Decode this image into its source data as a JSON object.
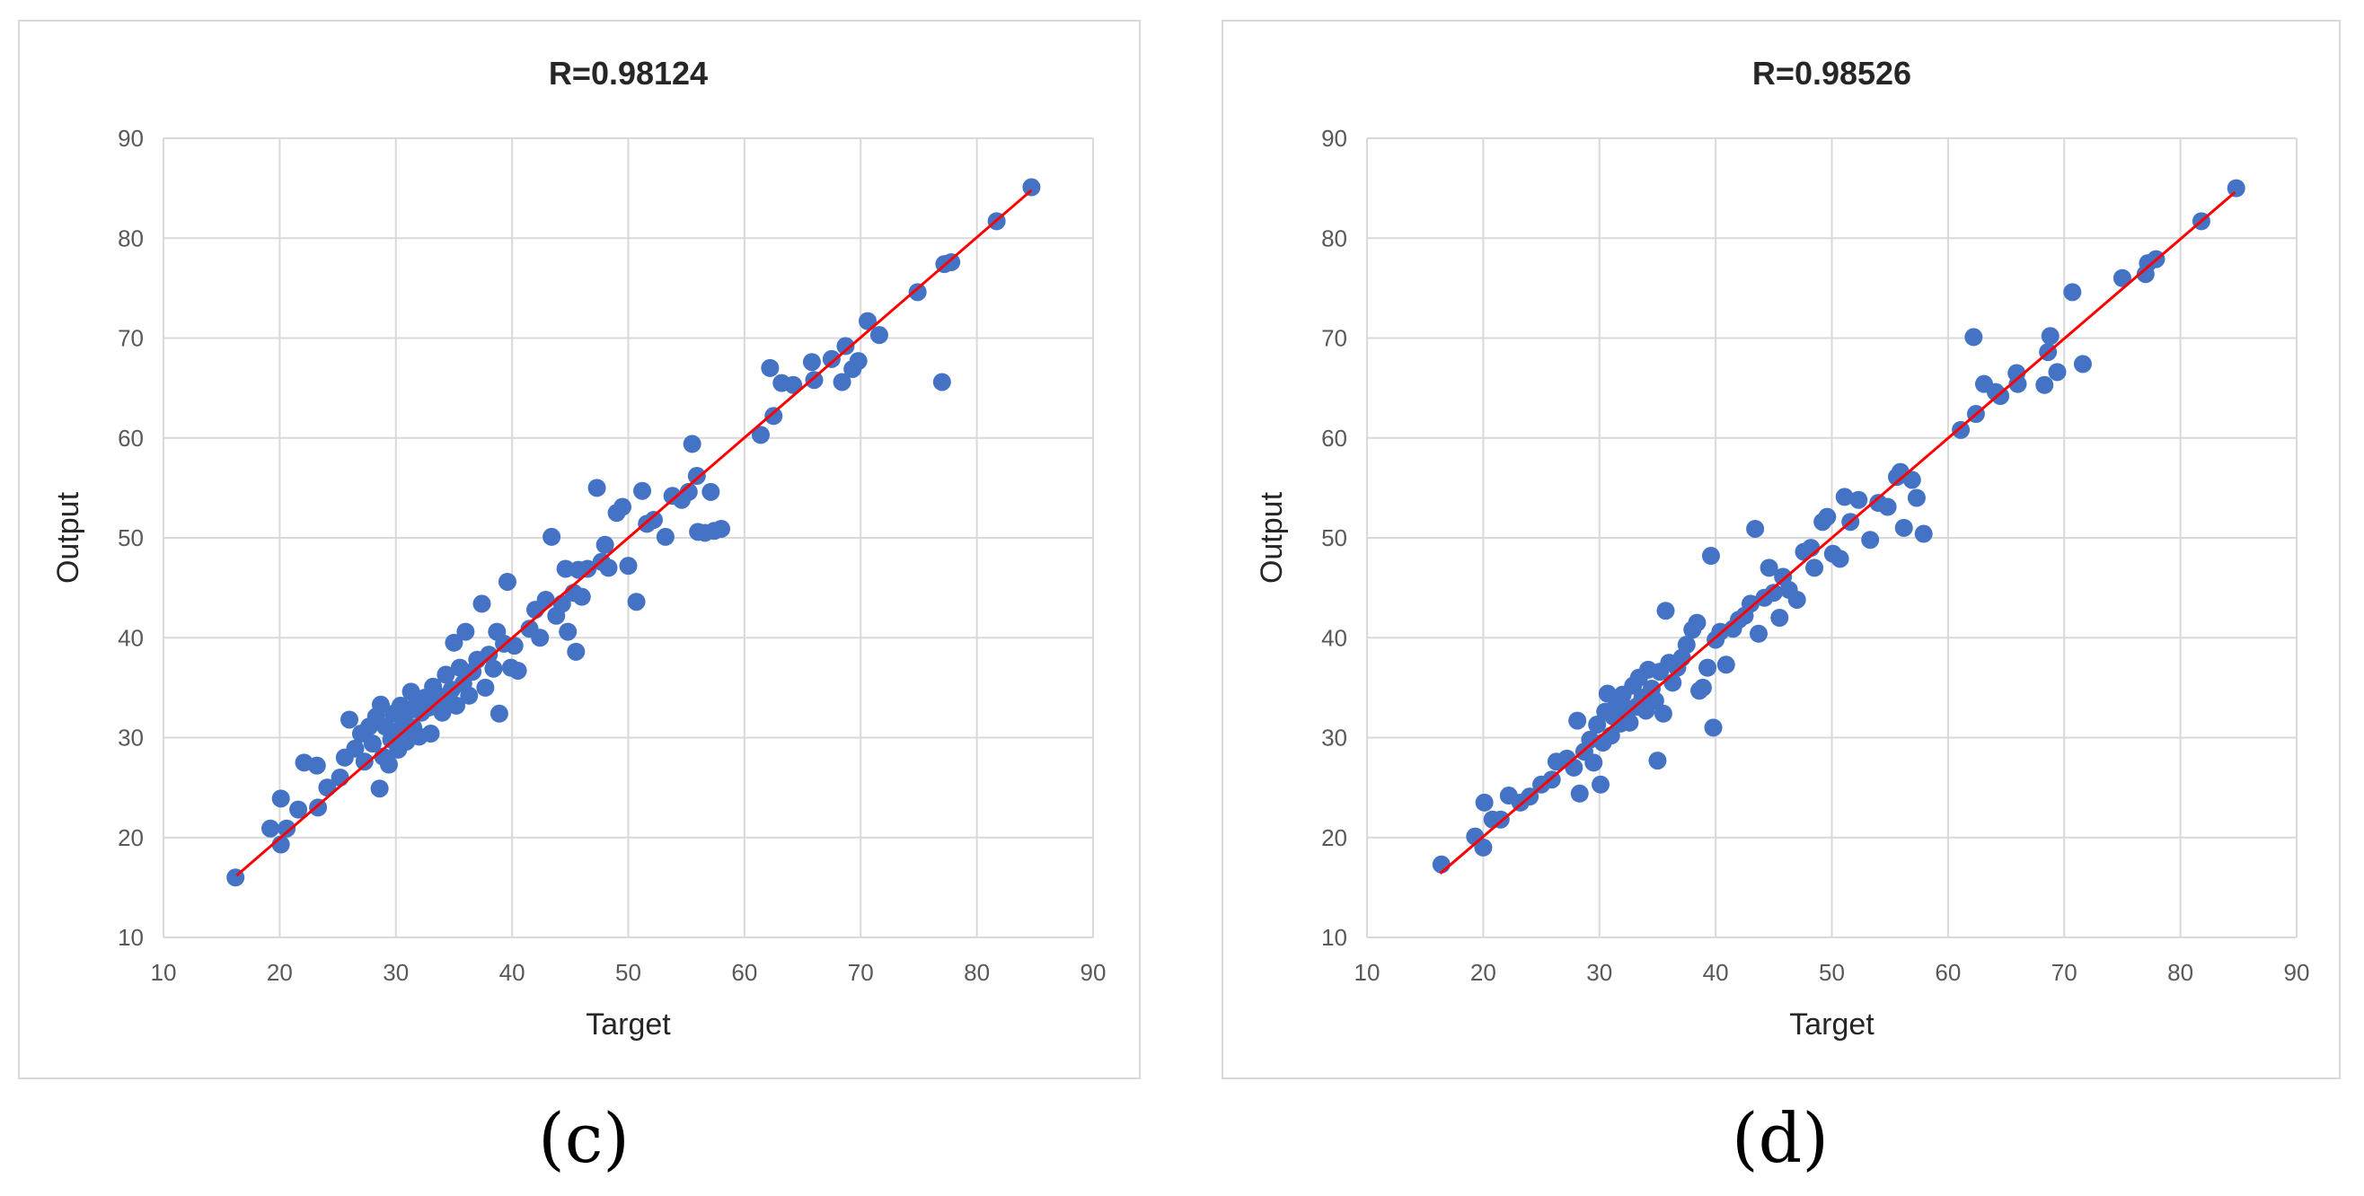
{
  "colors": {
    "marker": "#4472C4",
    "fit_line": "#FF0000",
    "grid": "#d9d9d9",
    "text": "#595959",
    "title": "#262626"
  },
  "chart_data": [
    {
      "type": "scatter",
      "caption": "(c)",
      "title": "R=0.98124",
      "xlabel": "Target",
      "ylabel": "Output",
      "xlim": [
        10,
        90
      ],
      "ylim": [
        10,
        90
      ],
      "xticks": [
        "10",
        "20",
        "30",
        "40",
        "50",
        "60",
        "70",
        "80",
        "90"
      ],
      "yticks": [
        "10",
        "20",
        "30",
        "40",
        "50",
        "60",
        "70",
        "80",
        "90"
      ],
      "grid": true,
      "fit_line": [
        [
          16.3,
          16.2
        ],
        [
          84.7,
          84.8
        ]
      ],
      "points": [
        [
          16.2,
          16.0
        ],
        [
          19.2,
          20.9
        ],
        [
          20.1,
          19.3
        ],
        [
          20.6,
          20.9
        ],
        [
          20.1,
          23.9
        ],
        [
          21.6,
          22.8
        ],
        [
          22.1,
          27.5
        ],
        [
          23.2,
          27.2
        ],
        [
          23.3,
          23.0
        ],
        [
          24.1,
          25.0
        ],
        [
          25.2,
          26.0
        ],
        [
          25.6,
          28.0
        ],
        [
          26.0,
          31.8
        ],
        [
          26.5,
          28.9
        ],
        [
          27.0,
          30.4
        ],
        [
          27.3,
          27.6
        ],
        [
          27.7,
          31.1
        ],
        [
          28.0,
          29.4
        ],
        [
          28.3,
          32.1
        ],
        [
          28.6,
          24.9
        ],
        [
          28.7,
          33.3
        ],
        [
          28.9,
          28.1
        ],
        [
          29.1,
          31.1
        ],
        [
          29.4,
          27.3
        ],
        [
          29.6,
          29.8
        ],
        [
          29.8,
          32.4
        ],
        [
          30.0,
          30.6
        ],
        [
          30.2,
          28.8
        ],
        [
          30.4,
          33.2
        ],
        [
          30.6,
          31.2
        ],
        [
          30.9,
          29.6
        ],
        [
          31.1,
          32.7
        ],
        [
          31.3,
          34.6
        ],
        [
          31.5,
          31.0
        ],
        [
          31.8,
          33.4
        ],
        [
          32.0,
          30.1
        ],
        [
          32.2,
          32.5
        ],
        [
          32.5,
          34.0
        ],
        [
          32.8,
          33.0
        ],
        [
          33.0,
          30.4
        ],
        [
          33.2,
          35.1
        ],
        [
          33.5,
          33.1
        ],
        [
          33.8,
          34.1
        ],
        [
          34.0,
          32.5
        ],
        [
          34.3,
          36.3
        ],
        [
          34.5,
          33.6
        ],
        [
          34.8,
          34.8
        ],
        [
          35.0,
          39.5
        ],
        [
          35.2,
          33.2
        ],
        [
          35.5,
          37.0
        ],
        [
          35.8,
          35.4
        ],
        [
          36.0,
          40.6
        ],
        [
          36.3,
          34.2
        ],
        [
          36.6,
          36.6
        ],
        [
          37.0,
          37.8
        ],
        [
          37.4,
          43.4
        ],
        [
          37.7,
          35.0
        ],
        [
          38.0,
          38.3
        ],
        [
          38.4,
          36.9
        ],
        [
          38.7,
          40.6
        ],
        [
          38.9,
          32.4
        ],
        [
          39.3,
          39.4
        ],
        [
          39.6,
          45.6
        ],
        [
          39.9,
          37.0
        ],
        [
          40.2,
          39.2
        ],
        [
          40.5,
          36.7
        ],
        [
          41.5,
          40.9
        ],
        [
          42.0,
          42.8
        ],
        [
          42.4,
          40.0
        ],
        [
          42.9,
          43.8
        ],
        [
          43.4,
          50.1
        ],
        [
          43.8,
          42.2
        ],
        [
          44.3,
          43.4
        ],
        [
          44.6,
          46.9
        ],
        [
          44.8,
          40.6
        ],
        [
          45.3,
          44.5
        ],
        [
          45.5,
          38.6
        ],
        [
          45.7,
          46.8
        ],
        [
          46.0,
          44.1
        ],
        [
          46.5,
          46.9
        ],
        [
          47.3,
          55.0
        ],
        [
          47.7,
          47.6
        ],
        [
          48.0,
          49.3
        ],
        [
          48.3,
          47.0
        ],
        [
          49.0,
          52.5
        ],
        [
          49.5,
          53.1
        ],
        [
          50.0,
          47.2
        ],
        [
          50.7,
          43.6
        ],
        [
          51.2,
          54.7
        ],
        [
          51.6,
          51.4
        ],
        [
          52.2,
          51.8
        ],
        [
          53.2,
          50.1
        ],
        [
          53.8,
          54.2
        ],
        [
          54.6,
          53.8
        ],
        [
          55.2,
          54.6
        ],
        [
          55.5,
          59.4
        ],
        [
          55.9,
          56.2
        ],
        [
          56.0,
          50.6
        ],
        [
          56.6,
          50.5
        ],
        [
          57.1,
          54.6
        ],
        [
          57.4,
          50.7
        ],
        [
          58.0,
          50.9
        ],
        [
          61.4,
          60.3
        ],
        [
          62.2,
          67.0
        ],
        [
          62.5,
          62.2
        ],
        [
          63.2,
          65.5
        ],
        [
          64.2,
          65.3
        ],
        [
          66.0,
          65.8
        ],
        [
          65.8,
          67.6
        ],
        [
          67.5,
          67.9
        ],
        [
          68.4,
          65.6
        ],
        [
          68.7,
          69.2
        ],
        [
          69.3,
          66.9
        ],
        [
          69.8,
          67.7
        ],
        [
          70.6,
          71.7
        ],
        [
          71.6,
          70.3
        ],
        [
          74.9,
          74.6
        ],
        [
          77.0,
          65.6
        ],
        [
          77.2,
          77.4
        ],
        [
          77.8,
          77.6
        ],
        [
          81.7,
          81.7
        ],
        [
          84.7,
          85.1
        ]
      ]
    },
    {
      "type": "scatter",
      "caption": "(d)",
      "title": "R=0.98526",
      "xlabel": "Target",
      "ylabel": "Output",
      "xlim": [
        10,
        90
      ],
      "ylim": [
        10,
        90
      ],
      "xticks": [
        "10",
        "20",
        "30",
        "40",
        "50",
        "60",
        "70",
        "80",
        "90"
      ],
      "yticks": [
        "10",
        "20",
        "30",
        "40",
        "50",
        "60",
        "70",
        "80",
        "90"
      ],
      "grid": true,
      "fit_line": [
        [
          16.3,
          16.4
        ],
        [
          84.7,
          84.6
        ]
      ],
      "points": [
        [
          16.4,
          17.3
        ],
        [
          19.3,
          20.1
        ],
        [
          20.0,
          19.0
        ],
        [
          20.1,
          23.5
        ],
        [
          20.8,
          21.8
        ],
        [
          21.5,
          21.8
        ],
        [
          22.2,
          24.2
        ],
        [
          23.2,
          23.5
        ],
        [
          24.0,
          24.1
        ],
        [
          25.0,
          25.3
        ],
        [
          25.9,
          25.8
        ],
        [
          26.3,
          27.6
        ],
        [
          27.2,
          27.9
        ],
        [
          27.8,
          27.0
        ],
        [
          28.1,
          31.7
        ],
        [
          28.3,
          24.4
        ],
        [
          28.7,
          28.6
        ],
        [
          29.2,
          29.8
        ],
        [
          29.5,
          27.5
        ],
        [
          29.8,
          31.3
        ],
        [
          30.1,
          25.3
        ],
        [
          30.3,
          29.5
        ],
        [
          30.5,
          32.6
        ],
        [
          30.7,
          34.4
        ],
        [
          31.0,
          30.2
        ],
        [
          31.2,
          32.1
        ],
        [
          31.5,
          33.5
        ],
        [
          31.8,
          31.4
        ],
        [
          32.0,
          34.3
        ],
        [
          32.3,
          32.9
        ],
        [
          32.6,
          31.5
        ],
        [
          32.9,
          35.2
        ],
        [
          33.2,
          33.1
        ],
        [
          33.4,
          36.0
        ],
        [
          33.7,
          34.0
        ],
        [
          34.0,
          32.7
        ],
        [
          34.2,
          36.8
        ],
        [
          34.5,
          34.9
        ],
        [
          34.8,
          33.7
        ],
        [
          35.0,
          27.7
        ],
        [
          35.2,
          36.6
        ],
        [
          35.5,
          32.4
        ],
        [
          35.7,
          42.7
        ],
        [
          36.0,
          37.5
        ],
        [
          36.3,
          35.5
        ],
        [
          36.7,
          37.0
        ],
        [
          37.1,
          38.0
        ],
        [
          37.5,
          39.3
        ],
        [
          38.0,
          40.8
        ],
        [
          38.4,
          41.5
        ],
        [
          38.6,
          34.7
        ],
        [
          38.9,
          35.0
        ],
        [
          39.3,
          37.0
        ],
        [
          39.6,
          48.2
        ],
        [
          39.8,
          31.0
        ],
        [
          40.0,
          39.8
        ],
        [
          40.4,
          40.6
        ],
        [
          40.9,
          37.3
        ],
        [
          41.5,
          40.9
        ],
        [
          42.0,
          41.8
        ],
        [
          42.5,
          42.2
        ],
        [
          43.0,
          43.4
        ],
        [
          43.4,
          50.9
        ],
        [
          43.7,
          40.4
        ],
        [
          44.2,
          44.0
        ],
        [
          44.6,
          47.0
        ],
        [
          45.0,
          44.5
        ],
        [
          45.5,
          42.0
        ],
        [
          45.8,
          46.1
        ],
        [
          46.3,
          44.8
        ],
        [
          47.0,
          43.8
        ],
        [
          47.6,
          48.6
        ],
        [
          48.2,
          49.0
        ],
        [
          48.5,
          47.0
        ],
        [
          49.2,
          51.6
        ],
        [
          49.6,
          52.1
        ],
        [
          50.1,
          48.4
        ],
        [
          50.7,
          47.9
        ],
        [
          51.1,
          54.1
        ],
        [
          51.6,
          51.6
        ],
        [
          52.3,
          53.8
        ],
        [
          53.3,
          49.8
        ],
        [
          54.0,
          53.5
        ],
        [
          54.8,
          53.1
        ],
        [
          55.6,
          56.1
        ],
        [
          55.9,
          56.6
        ],
        [
          56.2,
          51.0
        ],
        [
          56.9,
          55.8
        ],
        [
          57.3,
          54.0
        ],
        [
          57.9,
          50.4
        ],
        [
          61.1,
          60.8
        ],
        [
          62.2,
          70.1
        ],
        [
          62.4,
          62.4
        ],
        [
          63.1,
          65.4
        ],
        [
          64.1,
          64.6
        ],
        [
          64.5,
          64.2
        ],
        [
          65.9,
          66.5
        ],
        [
          66.0,
          65.4
        ],
        [
          68.3,
          65.3
        ],
        [
          68.6,
          68.6
        ],
        [
          68.8,
          70.2
        ],
        [
          69.4,
          66.6
        ],
        [
          70.7,
          74.6
        ],
        [
          71.6,
          67.4
        ],
        [
          75.0,
          76.0
        ],
        [
          77.0,
          76.4
        ],
        [
          77.2,
          77.5
        ],
        [
          77.9,
          77.9
        ],
        [
          81.8,
          81.7
        ],
        [
          84.8,
          85.0
        ]
      ]
    }
  ]
}
